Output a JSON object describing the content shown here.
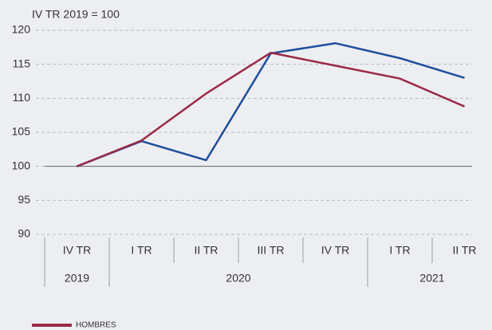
{
  "chart_data": {
    "type": "line",
    "annotation": "IV TR 2019 = 100",
    "categories": [
      "IV TR",
      "I TR",
      "II TR",
      "III TR",
      "IV TR",
      "I TR",
      "II TR"
    ],
    "years": [
      "2019",
      "2020",
      "2020",
      "2020",
      "2020",
      "2021",
      "2021"
    ],
    "series": [
      {
        "color": "#1f4e9a",
        "values": [
          100,
          103.7,
          100.9,
          116.6,
          118.1,
          115.9,
          113.0
        ]
      },
      {
        "name": "HOMBRES",
        "color": "#9b2a47",
        "values": [
          100,
          103.8,
          110.7,
          116.7,
          114.8,
          112.9,
          108.8
        ]
      }
    ],
    "ylim": [
      90,
      120
    ],
    "yticks": [
      90,
      95,
      100,
      105,
      110,
      115,
      120
    ],
    "baseline": 100,
    "grid": true,
    "legend": "bottom-left"
  }
}
